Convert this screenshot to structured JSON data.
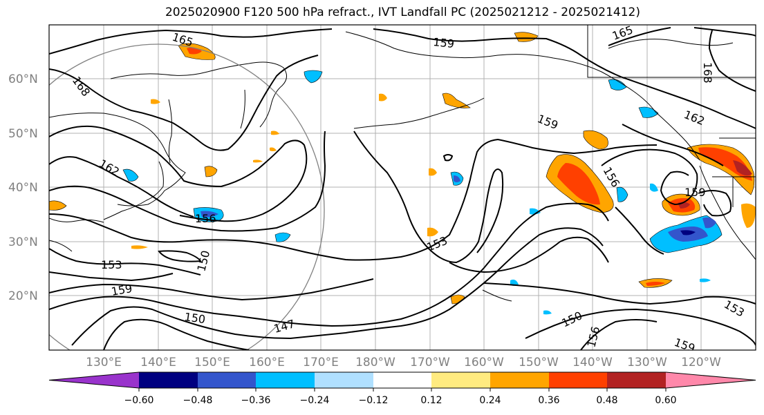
{
  "title": "2025020900 F120 500 hPa refract., IVT Landfall PC (2025021212 - 2025021412)",
  "map": {
    "lat_labels": [
      "60°N",
      "50°N",
      "40°N",
      "30°N",
      "20°N"
    ],
    "lon_labels": [
      "130°E",
      "140°E",
      "150°E",
      "160°E",
      "170°E",
      "180°W",
      "170°W",
      "160°W",
      "150°W",
      "140°W",
      "130°W",
      "120°W"
    ],
    "contour_labels": [
      "165",
      "159",
      "165",
      "168",
      "168",
      "162",
      "159",
      "162",
      "156",
      "156",
      "153",
      "150",
      "153",
      "159",
      "150",
      "147",
      "150",
      "156",
      "153",
      "159",
      "159"
    ]
  },
  "colorbar": {
    "ticks": [
      "−0.60",
      "−0.48",
      "−0.36",
      "−0.24",
      "−0.12",
      "0.12",
      "0.24",
      "0.36",
      "0.48",
      "0.60"
    ],
    "colors": [
      "#9933cc",
      "#000080",
      "#3355cc",
      "#00bfff",
      "#b0e0ff",
      "#ffffff",
      "#ffeb80",
      "#ffa500",
      "#ff4000",
      "#b22222",
      "#ff88aa"
    ]
  }
}
